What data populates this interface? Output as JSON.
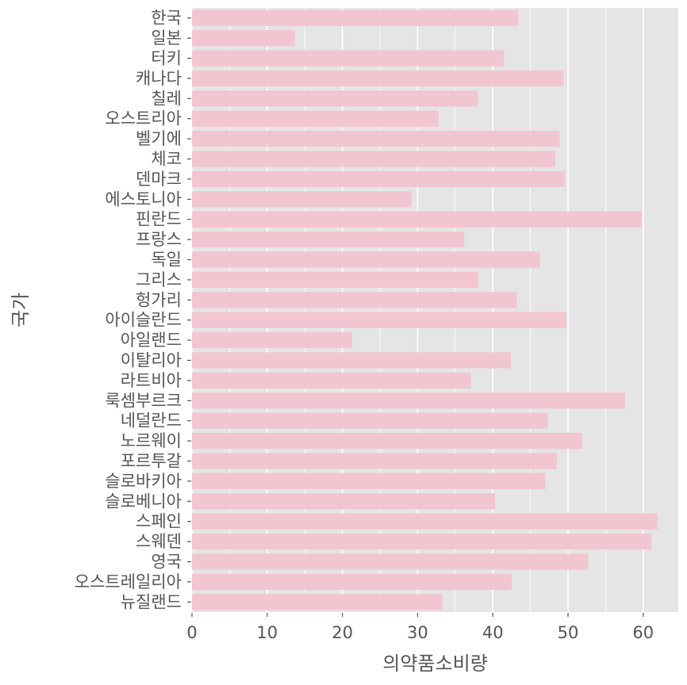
{
  "chart_data": {
    "type": "bar",
    "orientation": "horizontal",
    "xlabel": "의약품소비량",
    "ylabel": "국가",
    "xlim": [
      0,
      65
    ],
    "xticks": [
      0,
      10,
      20,
      30,
      40,
      50,
      60
    ],
    "grid": true,
    "style": "ggplot",
    "colors": {
      "bar": "#F2C6D1",
      "panel": "#E5E5E5",
      "grid": "#FFFFFF",
      "text": "#555555"
    },
    "categories": [
      "한국",
      "일본",
      "터키",
      "캐나다",
      "칠레",
      "오스트리아",
      "벨기에",
      "체코",
      "덴마크",
      "에스토니아",
      "핀란드",
      "프랑스",
      "독일",
      "그리스",
      "헝가리",
      "아이슬란드",
      "아일랜드",
      "이탈리아",
      "라트비아",
      "룩셈부르크",
      "네덜란드",
      "노르웨이",
      "포르투갈",
      "슬로바키아",
      "슬로베니아",
      "스페인",
      "스웨덴",
      "영국",
      "오스트레일리아",
      "뉴질랜드"
    ],
    "values": [
      43.4,
      13.7,
      41.5,
      49.4,
      38.0,
      32.8,
      48.9,
      48.3,
      49.6,
      29.2,
      59.8,
      36.2,
      46.3,
      38.1,
      43.2,
      49.8,
      21.3,
      42.4,
      37.1,
      57.6,
      47.3,
      51.9,
      48.5,
      47.0,
      40.3,
      61.9,
      61.1,
      52.7,
      42.5,
      33.3
    ]
  }
}
